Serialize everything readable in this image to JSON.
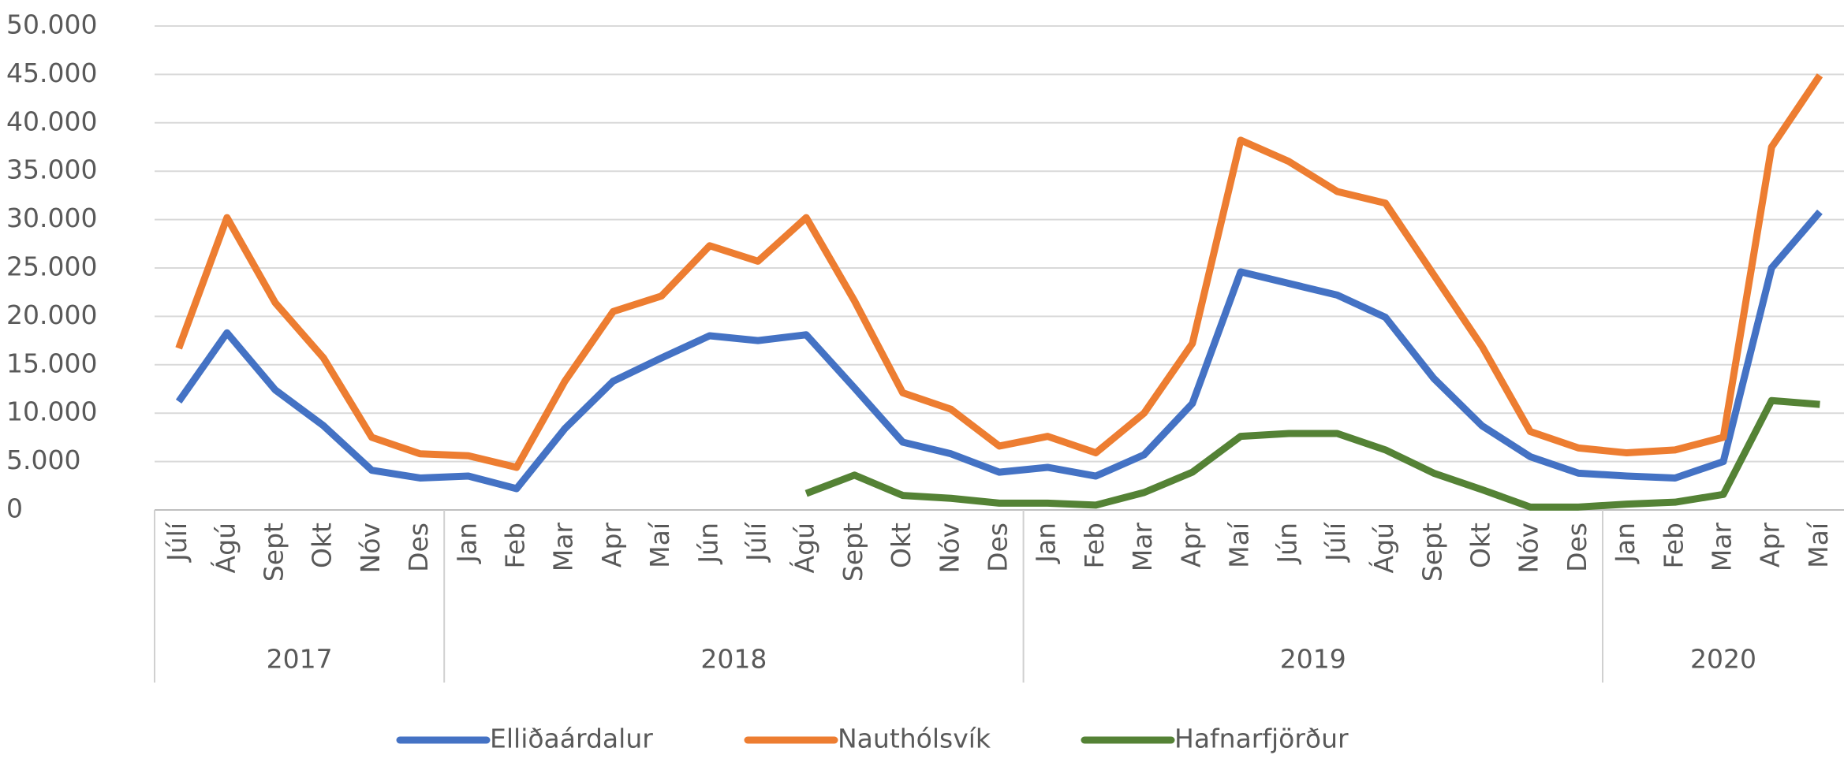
{
  "chart_data": {
    "type": "line",
    "category_groups": [
      {
        "label": "2017",
        "categories": [
          "Júlí",
          "Ágú",
          "Sept",
          "Okt",
          "Nóv",
          "Des"
        ]
      },
      {
        "label": "2018",
        "categories": [
          "Jan",
          "Feb",
          "Mar",
          "Apr",
          "Maí",
          "Jún",
          "Júlí",
          "Ágú",
          "Sept",
          "Okt",
          "Nóv",
          "Des"
        ]
      },
      {
        "label": "2019",
        "categories": [
          "Jan",
          "Feb",
          "Mar",
          "Apr",
          "Maí",
          "Jún",
          "Júlí",
          "Ágú",
          "Sept",
          "Okt",
          "Nóv",
          "Des"
        ]
      },
      {
        "label": "2020",
        "categories": [
          "Jan",
          "Feb",
          "Mar",
          "Apr",
          "Maí"
        ]
      }
    ],
    "series": [
      {
        "name": "Elliðaárdalur",
        "color": "#4472c4",
        "values": [
          11200,
          18300,
          12400,
          8700,
          4100,
          3300,
          3500,
          2200,
          8400,
          13300,
          15700,
          18000,
          17500,
          18100,
          12600,
          7000,
          5800,
          3900,
          4400,
          3500,
          5700,
          11000,
          24600,
          23400,
          22200,
          19900,
          13600,
          8700,
          5500,
          3800,
          3500,
          3300,
          5000,
          25000,
          30800
        ]
      },
      {
        "name": "Nauthólsvík",
        "color": "#ed7d31",
        "values": [
          16700,
          30200,
          21400,
          15700,
          7500,
          5800,
          5600,
          4400,
          13300,
          20500,
          22100,
          27300,
          25700,
          30200,
          21600,
          12100,
          10400,
          6600,
          7600,
          5900,
          10000,
          17200,
          38200,
          36000,
          32900,
          31700,
          24300,
          16900,
          8100,
          6400,
          5900,
          6200,
          7500,
          37500,
          44900
        ]
      },
      {
        "name": "Hafnarfjörður",
        "color": "#548235",
        "values": [
          null,
          null,
          null,
          null,
          null,
          null,
          null,
          null,
          null,
          null,
          null,
          null,
          null,
          1700,
          3600,
          1500,
          1200,
          700,
          700,
          500,
          1800,
          3900,
          7600,
          7900,
          7900,
          6200,
          3800,
          2100,
          300,
          300,
          600,
          800,
          1600,
          11300,
          10900
        ]
      }
    ],
    "ylim": [
      0,
      50000
    ],
    "yticks": [
      0,
      {
        "value": 5000,
        "label": "5.000"
      },
      {
        "value": 10000,
        "label": "10.000"
      },
      {
        "value": 15000,
        "label": "15.000"
      },
      {
        "value": 20000,
        "label": "20.000"
      },
      {
        "value": 25000,
        "label": "25.000"
      },
      {
        "value": 30000,
        "label": "30.000"
      },
      {
        "value": 35000,
        "label": "35.000"
      },
      {
        "value": 40000,
        "label": "40.000"
      },
      {
        "value": 45000,
        "label": "45.000"
      },
      {
        "value": 50000,
        "label": "50.000"
      }
    ],
    "grid": true,
    "legend": "bottom"
  }
}
